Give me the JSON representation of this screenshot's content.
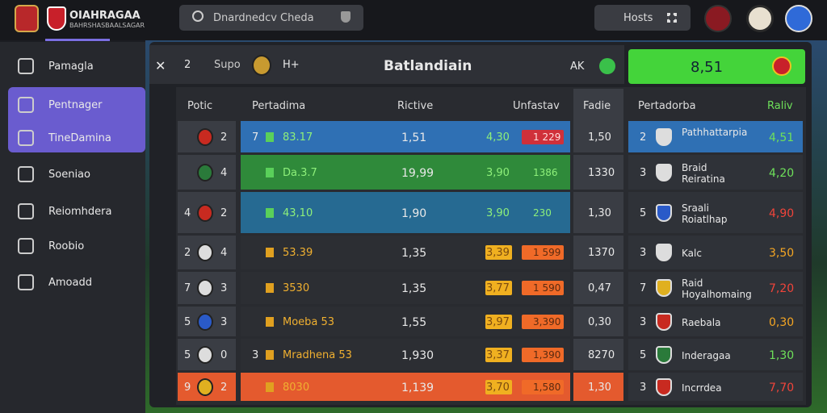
{
  "header": {
    "brand": "OIAHRAGAA",
    "brand_sub": "BAHRSHASBAALSAGAR",
    "search": "Dnardnedcv Cheda",
    "hosts": "Hosts"
  },
  "sidebar": {
    "items": [
      "Pamagla",
      "Pentnager",
      "TineDamina",
      "Soeniao",
      "Reiomhdera",
      "Roobio",
      "Amoadd"
    ]
  },
  "toolbar": {
    "close": "✕",
    "count": "2",
    "label": "Supo",
    "tag": "H+",
    "title": "Batlandiain",
    "ak": "AK",
    "score": "8,51"
  },
  "table": {
    "columns": [
      "Potic",
      "Pertadima",
      "Rictive",
      "Unfastav",
      "Fadie",
      "Pertadorba",
      "Raliv"
    ],
    "rows": [
      {
        "num": "2",
        "pre": "7",
        "team": "83.17",
        "rel": "1,51",
        "a": "4,30",
        "b": "1 229",
        "fade": "1,50",
        "rnum": "2",
        "rteam": "Pathhattarpia",
        "rval": "4,51",
        "tone": "blue",
        "rval_color": "#6ee05a"
      },
      {
        "num": "4",
        "team": "Da.3.7",
        "rel": "19,99",
        "a": "3,90",
        "b": "1386",
        "fade": "1330",
        "rnum": "3",
        "rteam": "Braid Reiratina",
        "rval": "4,20",
        "tone": "green",
        "rval_color": "#6ee05a"
      },
      {
        "lead": "4",
        "num": "2",
        "team": "43,10",
        "rel": "1,90",
        "a": "3,90",
        "b": "230",
        "fade": "1,30",
        "rnum": "5",
        "rteam": "Sraali Roiatlhap",
        "rval": "4,90",
        "tone": "teal",
        "rval_color": "#f0443a"
      },
      {
        "lead": "2",
        "num": "4",
        "team": "53.39",
        "rel": "1,35",
        "a": "3,39",
        "b": "1 599",
        "fade": "1370",
        "rnum": "3",
        "rteam": "Kalc",
        "rval": "3,50",
        "tone": "dark",
        "rval_color": "#f5a623"
      },
      {
        "lead": "7",
        "num": "3",
        "team": "3530",
        "rel": "1,35",
        "a": "3,77",
        "b": "1 590",
        "fade": "0,47",
        "rnum": "7",
        "rteam": "Raid Hoyalhomaing",
        "rval": "7,20",
        "tone": "dark",
        "rval_color": "#f0443a"
      },
      {
        "lead": "5",
        "num": "3",
        "team": "Moeba 53",
        "rel": "1,55",
        "a": "3,97",
        "b": "3,390",
        "fade": "0,30",
        "rnum": "3",
        "rteam": "Raebala",
        "rval": "0,30",
        "tone": "dark",
        "rval_color": "#f5a623"
      },
      {
        "lead": "5",
        "num": "0",
        "pre": "3",
        "team": "Mradhena 53",
        "rel": "1,930",
        "a": "3,37",
        "b": "1,390",
        "fade": "8270",
        "rnum": "5",
        "rteam": "Inderagaa",
        "rval": "1,30",
        "tone": "dark",
        "rval_color": "#6ee05a"
      },
      {
        "lead": "9",
        "num": "2",
        "team": "8030",
        "rel": "1,139",
        "a": "3,70",
        "b": "1,580",
        "fade": "1,30",
        "rnum": "3",
        "rteam": "Incrrdea",
        "rval": "7,70",
        "tone": "orange",
        "rval_color": "#f0443a"
      }
    ]
  }
}
